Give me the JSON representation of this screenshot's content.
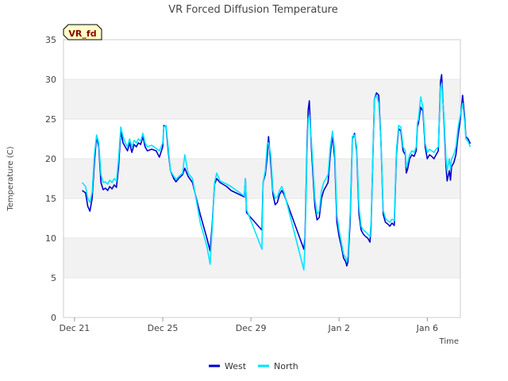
{
  "chart_data": {
    "type": "line",
    "title": "VR Forced Diffusion Temperature",
    "badge": "VR_fd",
    "xlabel": "Time",
    "ylabel": "Temperature (C)",
    "ylim": [
      0,
      35
    ],
    "yticks": [
      0,
      5,
      10,
      15,
      20,
      25,
      30,
      35
    ],
    "xlim": [
      -0.5,
      17.5
    ],
    "xticks": [
      {
        "day": 0,
        "label": "Dec 21"
      },
      {
        "day": 4,
        "label": "Dec 25"
      },
      {
        "day": 8,
        "label": "Dec 29"
      },
      {
        "day": 12,
        "label": "Jan 2"
      },
      {
        "day": 16,
        "label": "Jan 6"
      }
    ],
    "grid": "horizontal alternating bands",
    "legend_position": "bottom-center",
    "series": [
      {
        "name": "West",
        "color": "#0000cd",
        "points": [
          [
            0.35,
            16.0
          ],
          [
            0.5,
            15.7
          ],
          [
            0.6,
            14.0
          ],
          [
            0.7,
            13.4
          ],
          [
            0.8,
            15.0
          ],
          [
            0.9,
            19.5
          ],
          [
            1.0,
            22.8
          ],
          [
            1.1,
            21.5
          ],
          [
            1.2,
            17.0
          ],
          [
            1.3,
            16.1
          ],
          [
            1.4,
            16.3
          ],
          [
            1.5,
            16.0
          ],
          [
            1.6,
            16.5
          ],
          [
            1.7,
            16.2
          ],
          [
            1.8,
            16.7
          ],
          [
            1.9,
            16.4
          ],
          [
            2.0,
            19.0
          ],
          [
            2.1,
            23.5
          ],
          [
            2.2,
            22.0
          ],
          [
            2.3,
            21.5
          ],
          [
            2.4,
            21.0
          ],
          [
            2.5,
            22.0
          ],
          [
            2.6,
            20.8
          ],
          [
            2.7,
            21.8
          ],
          [
            2.8,
            21.5
          ],
          [
            2.9,
            22.0
          ],
          [
            3.0,
            21.8
          ],
          [
            3.1,
            22.8
          ],
          [
            3.2,
            21.5
          ],
          [
            3.3,
            21.0
          ],
          [
            3.5,
            21.2
          ],
          [
            3.7,
            21.0
          ],
          [
            3.85,
            20.2
          ],
          [
            4.0,
            21.5
          ],
          [
            4.05,
            24.2
          ],
          [
            4.15,
            24.0
          ],
          [
            4.25,
            21.0
          ],
          [
            4.35,
            18.5
          ],
          [
            4.5,
            17.5
          ],
          [
            4.6,
            17.1
          ],
          [
            4.75,
            17.6
          ],
          [
            4.9,
            18.0
          ],
          [
            5.0,
            18.8
          ],
          [
            5.15,
            17.8
          ],
          [
            5.35,
            17.0
          ],
          [
            5.7,
            13.0
          ],
          [
            6.0,
            10.0
          ],
          [
            6.15,
            8.4
          ],
          [
            6.25,
            12.0
          ],
          [
            6.35,
            16.8
          ],
          [
            6.45,
            17.5
          ],
          [
            6.6,
            17.0
          ],
          [
            6.9,
            16.5
          ],
          [
            7.1,
            16.0
          ],
          [
            7.7,
            15.2
          ],
          [
            7.75,
            17.5
          ],
          [
            7.8,
            13.2
          ],
          [
            8.5,
            11.0
          ],
          [
            8.55,
            17.0
          ],
          [
            8.65,
            18.0
          ],
          [
            8.75,
            20.5
          ],
          [
            8.8,
            22.8
          ],
          [
            8.9,
            19.5
          ],
          [
            9.0,
            15.5
          ],
          [
            9.1,
            14.2
          ],
          [
            9.2,
            14.5
          ],
          [
            9.3,
            15.5
          ],
          [
            9.4,
            16.0
          ],
          [
            9.5,
            15.5
          ],
          [
            10.4,
            8.6
          ],
          [
            10.45,
            10.0
          ],
          [
            10.55,
            22.0
          ],
          [
            10.6,
            26.2
          ],
          [
            10.65,
            27.3
          ],
          [
            10.75,
            21.0
          ],
          [
            10.9,
            14.0
          ],
          [
            11.0,
            12.3
          ],
          [
            11.1,
            12.6
          ],
          [
            11.2,
            15.0
          ],
          [
            11.3,
            16.0
          ],
          [
            11.4,
            16.5
          ],
          [
            11.5,
            17.0
          ],
          [
            11.6,
            20.5
          ],
          [
            11.7,
            23.0
          ],
          [
            11.8,
            20.0
          ],
          [
            11.9,
            12.0
          ],
          [
            12.0,
            10.2
          ],
          [
            12.1,
            9.0
          ],
          [
            12.2,
            7.5
          ],
          [
            12.3,
            7.0
          ],
          [
            12.35,
            6.5
          ],
          [
            12.4,
            7.0
          ],
          [
            12.5,
            12.0
          ],
          [
            12.6,
            22.5
          ],
          [
            12.7,
            23.2
          ],
          [
            12.8,
            21.0
          ],
          [
            12.9,
            13.0
          ],
          [
            13.0,
            11.0
          ],
          [
            13.1,
            10.5
          ],
          [
            13.2,
            10.2
          ],
          [
            13.3,
            10.0
          ],
          [
            13.4,
            9.5
          ],
          [
            13.45,
            11.5
          ],
          [
            13.6,
            27.5
          ],
          [
            13.7,
            28.3
          ],
          [
            13.8,
            28.0
          ],
          [
            13.9,
            22.0
          ],
          [
            14.0,
            13.0
          ],
          [
            14.1,
            12.0
          ],
          [
            14.2,
            11.8
          ],
          [
            14.3,
            11.5
          ],
          [
            14.4,
            11.9
          ],
          [
            14.5,
            11.6
          ],
          [
            14.6,
            20.5
          ],
          [
            14.7,
            23.8
          ],
          [
            14.8,
            23.5
          ],
          [
            14.9,
            21.0
          ],
          [
            15.0,
            20.5
          ],
          [
            15.05,
            18.2
          ],
          [
            15.1,
            18.6
          ],
          [
            15.2,
            20.0
          ],
          [
            15.3,
            20.5
          ],
          [
            15.4,
            20.3
          ],
          [
            15.5,
            21.0
          ],
          [
            15.55,
            24.0
          ],
          [
            15.6,
            24.5
          ],
          [
            15.7,
            26.5
          ],
          [
            15.8,
            26.0
          ],
          [
            15.9,
            21.5
          ],
          [
            16.0,
            20.0
          ],
          [
            16.1,
            20.5
          ],
          [
            16.2,
            20.3
          ],
          [
            16.3,
            20.0
          ],
          [
            16.4,
            20.5
          ],
          [
            16.5,
            21.0
          ],
          [
            16.6,
            29.8
          ],
          [
            16.65,
            30.6
          ],
          [
            16.75,
            25.0
          ],
          [
            16.85,
            19.0
          ],
          [
            16.9,
            17.2
          ],
          [
            17.0,
            18.5
          ],
          [
            17.05,
            17.3
          ],
          [
            17.1,
            19.0
          ],
          [
            17.2,
            19.5
          ],
          [
            17.3,
            20.5
          ],
          [
            17.4,
            23.0
          ],
          [
            17.5,
            25.0
          ],
          [
            17.6,
            28.0
          ],
          [
            17.7,
            25.0
          ],
          [
            17.75,
            22.8
          ],
          [
            17.85,
            22.5
          ],
          [
            17.95,
            21.9
          ]
        ]
      },
      {
        "name": "North",
        "color": "#00e5ff",
        "points": [
          [
            0.35,
            17.0
          ],
          [
            0.5,
            16.5
          ],
          [
            0.6,
            15.0
          ],
          [
            0.7,
            14.5
          ],
          [
            0.8,
            15.8
          ],
          [
            0.9,
            20.5
          ],
          [
            1.0,
            23.0
          ],
          [
            1.1,
            22.0
          ],
          [
            1.2,
            18.0
          ],
          [
            1.3,
            17.0
          ],
          [
            1.4,
            17.1
          ],
          [
            1.5,
            16.8
          ],
          [
            1.6,
            17.3
          ],
          [
            1.7,
            17.0
          ],
          [
            1.8,
            17.5
          ],
          [
            1.9,
            17.2
          ],
          [
            2.0,
            20.0
          ],
          [
            2.1,
            24.0
          ],
          [
            2.2,
            22.8
          ],
          [
            2.3,
            22.0
          ],
          [
            2.4,
            21.5
          ],
          [
            2.5,
            22.5
          ],
          [
            2.6,
            21.5
          ],
          [
            2.7,
            22.3
          ],
          [
            2.8,
            22.0
          ],
          [
            2.9,
            22.5
          ],
          [
            3.0,
            22.2
          ],
          [
            3.1,
            23.2
          ],
          [
            3.2,
            22.0
          ],
          [
            3.3,
            21.5
          ],
          [
            3.5,
            21.7
          ],
          [
            3.7,
            21.3
          ],
          [
            3.85,
            21.0
          ],
          [
            4.0,
            22.0
          ],
          [
            4.05,
            24.0
          ],
          [
            4.15,
            24.2
          ],
          [
            4.25,
            21.5
          ],
          [
            4.35,
            18.5
          ],
          [
            4.5,
            17.8
          ],
          [
            4.6,
            17.4
          ],
          [
            4.75,
            17.8
          ],
          [
            4.9,
            18.2
          ],
          [
            5.0,
            20.5
          ],
          [
            5.15,
            18.2
          ],
          [
            5.35,
            17.5
          ],
          [
            5.7,
            12.0
          ],
          [
            6.0,
            9.0
          ],
          [
            6.15,
            6.7
          ],
          [
            6.25,
            11.5
          ],
          [
            6.35,
            17.0
          ],
          [
            6.45,
            18.2
          ],
          [
            6.6,
            17.2
          ],
          [
            6.9,
            16.8
          ],
          [
            7.1,
            16.5
          ],
          [
            7.7,
            15.3
          ],
          [
            7.75,
            17.5
          ],
          [
            7.8,
            13.6
          ],
          [
            8.5,
            8.6
          ],
          [
            8.55,
            17.0
          ],
          [
            8.65,
            18.5
          ],
          [
            8.75,
            22.0
          ],
          [
            8.8,
            22.0
          ],
          [
            8.9,
            20.5
          ],
          [
            9.0,
            16.0
          ],
          [
            9.1,
            15.0
          ],
          [
            9.2,
            15.2
          ],
          [
            9.3,
            16.0
          ],
          [
            9.4,
            16.5
          ],
          [
            9.5,
            15.8
          ],
          [
            10.4,
            6.0
          ],
          [
            10.45,
            9.0
          ],
          [
            10.55,
            21.0
          ],
          [
            10.6,
            25.0
          ],
          [
            10.65,
            25.5
          ],
          [
            10.75,
            22.0
          ],
          [
            10.9,
            15.0
          ],
          [
            11.0,
            13.0
          ],
          [
            11.1,
            13.4
          ],
          [
            11.2,
            16.0
          ],
          [
            11.3,
            17.0
          ],
          [
            11.4,
            17.5
          ],
          [
            11.5,
            18.0
          ],
          [
            11.6,
            21.5
          ],
          [
            11.7,
            23.5
          ],
          [
            11.8,
            21.0
          ],
          [
            11.9,
            13.0
          ],
          [
            12.0,
            11.0
          ],
          [
            12.1,
            9.5
          ],
          [
            12.2,
            8.0
          ],
          [
            12.3,
            7.5
          ],
          [
            12.35,
            7.0
          ],
          [
            12.4,
            7.8
          ],
          [
            12.5,
            13.0
          ],
          [
            12.6,
            22.8
          ],
          [
            12.7,
            23.0
          ],
          [
            12.8,
            21.5
          ],
          [
            12.9,
            14.0
          ],
          [
            13.0,
            11.5
          ],
          [
            13.1,
            11.0
          ],
          [
            13.2,
            10.8
          ],
          [
            13.3,
            10.5
          ],
          [
            13.4,
            10.2
          ],
          [
            13.45,
            12.0
          ],
          [
            13.6,
            27.5
          ],
          [
            13.7,
            28.0
          ],
          [
            13.8,
            27.0
          ],
          [
            13.9,
            22.0
          ],
          [
            14.0,
            13.5
          ],
          [
            14.1,
            12.5
          ],
          [
            14.2,
            12.2
          ],
          [
            14.3,
            12.0
          ],
          [
            14.4,
            12.4
          ],
          [
            14.5,
            12.2
          ],
          [
            14.6,
            21.0
          ],
          [
            14.7,
            24.2
          ],
          [
            14.8,
            24.0
          ],
          [
            14.9,
            21.5
          ],
          [
            15.0,
            21.0
          ],
          [
            15.05,
            19.0
          ],
          [
            15.1,
            19.4
          ],
          [
            15.2,
            20.5
          ],
          [
            15.3,
            21.0
          ],
          [
            15.4,
            20.8
          ],
          [
            15.5,
            21.5
          ],
          [
            15.55,
            24.5
          ],
          [
            15.6,
            25.0
          ],
          [
            15.7,
            27.8
          ],
          [
            15.8,
            26.5
          ],
          [
            15.9,
            22.0
          ],
          [
            16.0,
            20.8
          ],
          [
            16.1,
            21.2
          ],
          [
            16.2,
            21.0
          ],
          [
            16.3,
            20.8
          ],
          [
            16.4,
            21.2
          ],
          [
            16.5,
            21.5
          ],
          [
            16.6,
            29.0
          ],
          [
            16.65,
            29.5
          ],
          [
            16.75,
            25.5
          ],
          [
            16.85,
            20.0
          ],
          [
            16.9,
            18.5
          ],
          [
            17.0,
            20.0
          ],
          [
            17.05,
            18.7
          ],
          [
            17.1,
            20.0
          ],
          [
            17.2,
            20.5
          ],
          [
            17.3,
            21.5
          ],
          [
            17.4,
            24.0
          ],
          [
            17.5,
            25.5
          ],
          [
            17.6,
            27.0
          ],
          [
            17.7,
            24.5
          ],
          [
            17.75,
            22.5
          ],
          [
            17.85,
            22.2
          ],
          [
            17.95,
            21.5
          ]
        ]
      }
    ]
  }
}
